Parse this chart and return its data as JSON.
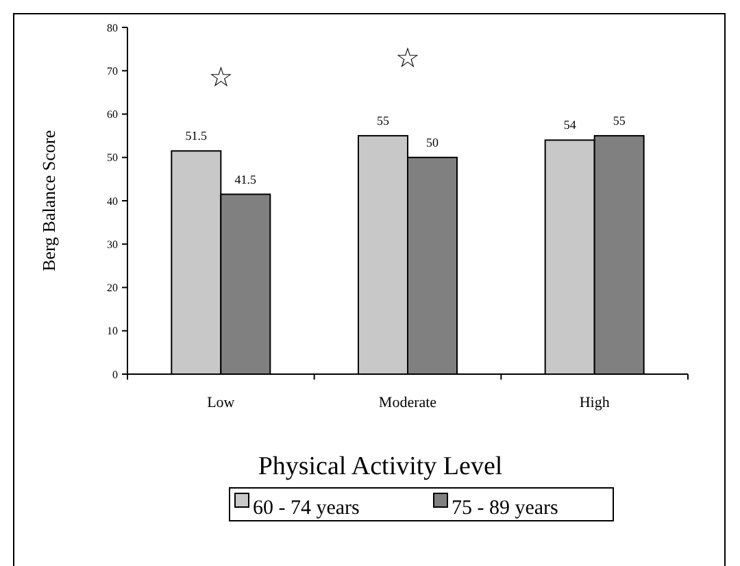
{
  "chart_data": {
    "type": "bar",
    "xlabel": "Physical Activity Level",
    "ylabel": "Berg Balance Score",
    "categories": [
      "Low",
      "Moderate",
      "High"
    ],
    "series": [
      {
        "name": "60 - 74 years",
        "color": "#c8c8c8",
        "values": [
          51.5,
          55,
          54
        ]
      },
      {
        "name": "75 - 89 years",
        "color": "#808080",
        "values": [
          41.5,
          50,
          55
        ]
      }
    ],
    "ylim": [
      0,
      80
    ],
    "yticks": [
      0,
      10,
      20,
      30,
      40,
      50,
      60,
      70,
      80
    ],
    "grid": false,
    "legend": "bottom",
    "data_labels": true,
    "annotations": [
      "☆",
      "☆"
    ]
  }
}
